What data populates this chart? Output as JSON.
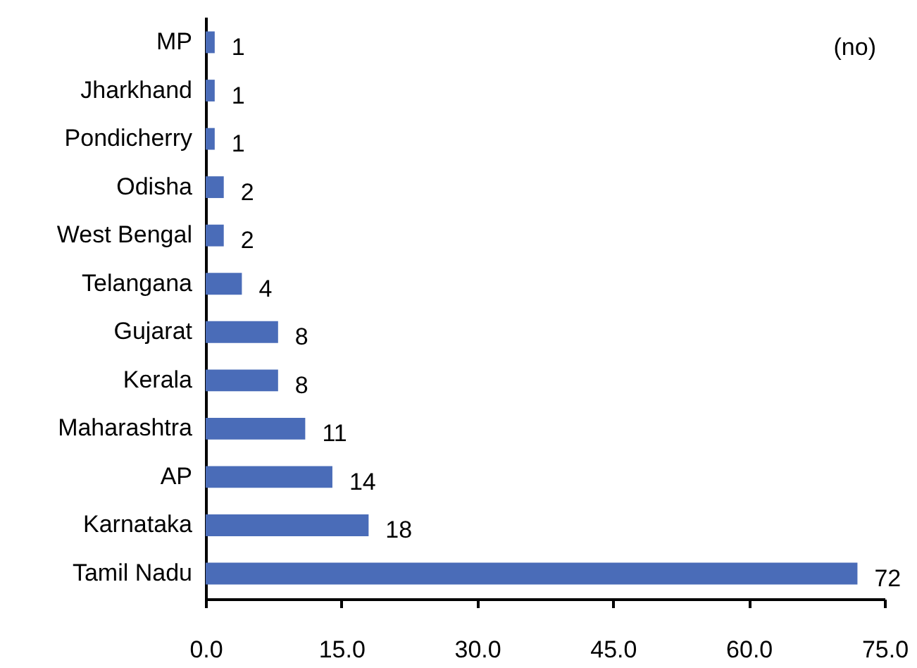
{
  "chart_data": {
    "type": "bar",
    "orientation": "horizontal",
    "categories": [
      "MP",
      "Jharkhand",
      "Pondicherry",
      "Odisha",
      "West Bengal",
      "Telangana",
      "Gujarat",
      "Kerala",
      "Maharashtra",
      "AP",
      "Karnataka",
      "Tamil Nadu"
    ],
    "values": [
      1,
      1,
      1,
      2,
      2,
      4,
      8,
      8,
      11,
      14,
      18,
      72
    ],
    "color": "#4a6cb8",
    "xlim": [
      0,
      75
    ],
    "xticks": [
      {
        "value": 0,
        "label": "0.0"
      },
      {
        "value": 15,
        "label": "15.0"
      },
      {
        "value": 30,
        "label": "30.0"
      },
      {
        "value": 45,
        "label": "45.0"
      },
      {
        "value": 60,
        "label": "60.0"
      },
      {
        "value": 75,
        "label": "75.0"
      }
    ],
    "data_labels": true,
    "grid": false,
    "annotations": [
      "(no)"
    ]
  }
}
